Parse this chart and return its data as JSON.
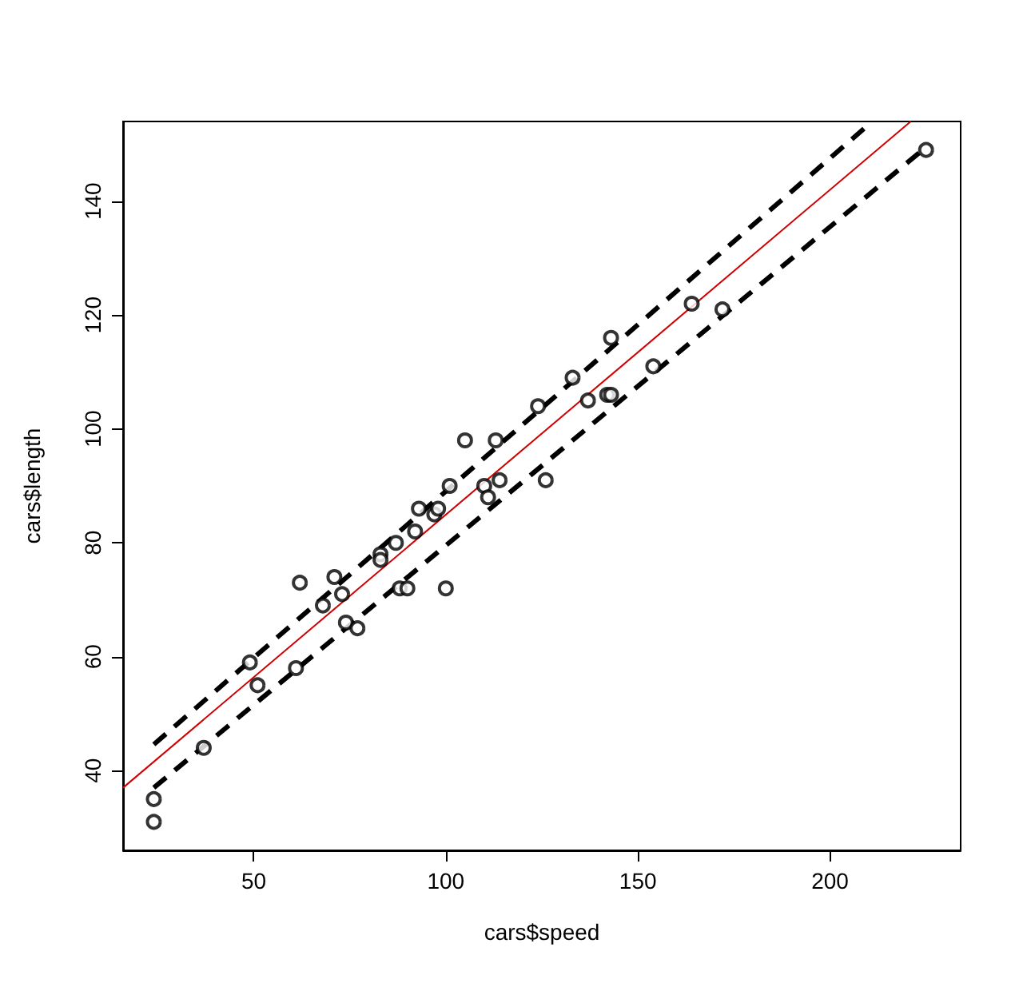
{
  "chart_data": {
    "type": "scatter",
    "xlabel": "cars$speed",
    "ylabel": "cars$length",
    "xlim": [
      16,
      234
    ],
    "ylim": [
      26,
      154
    ],
    "xticks": [
      50,
      100,
      150,
      200
    ],
    "yticks": [
      40,
      60,
      80,
      100,
      120,
      140
    ],
    "grid": false,
    "series": [
      {
        "marker": "circle",
        "color": "#000000",
        "x": [
          24,
          24,
          37,
          49,
          51,
          61,
          62,
          68,
          71,
          73,
          74,
          77,
          83,
          83,
          87,
          88,
          90,
          92,
          93,
          97,
          98,
          100,
          101,
          105,
          110,
          111,
          113,
          114,
          124,
          126,
          133,
          137,
          142,
          143,
          143,
          154,
          164,
          172,
          225
        ],
        "values": [
          31,
          35,
          44,
          59,
          55,
          58,
          73,
          69,
          74,
          71,
          66,
          65,
          78,
          77,
          80,
          72,
          72,
          82,
          86,
          85,
          86,
          72,
          90,
          98,
          90,
          88,
          98,
          91,
          104,
          91,
          109,
          105,
          106,
          106,
          116,
          111,
          122,
          121,
          149
        ]
      },
      {
        "type": "line",
        "marker": "none",
        "line_style": "solid",
        "color": "#d00000",
        "x": [
          16,
          221
        ],
        "values": [
          37,
          154
        ]
      },
      {
        "type": "line",
        "marker": "none",
        "line_style": "dashed",
        "color": "#000000",
        "x": [
          24,
          211
        ],
        "values": [
          44.6,
          154
        ]
      },
      {
        "type": "line",
        "marker": "none",
        "line_style": "dashed",
        "color": "#000000",
        "x": [
          24,
          225
        ],
        "values": [
          37,
          149.5
        ]
      }
    ]
  }
}
